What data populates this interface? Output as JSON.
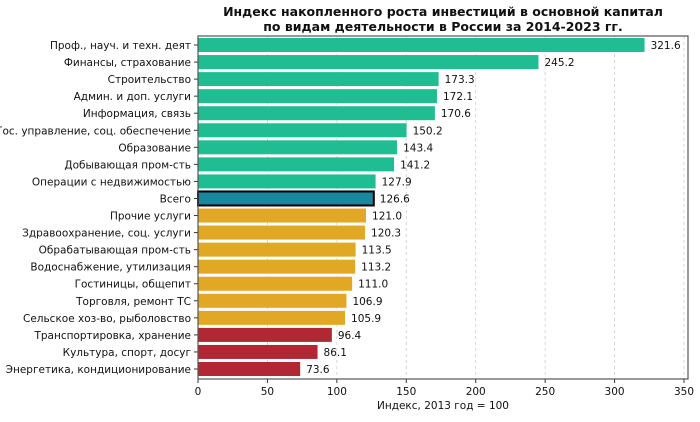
{
  "chart_data": {
    "type": "bar",
    "orientation": "horizontal",
    "title": "Индекс накопленного роста инвестиций в основной капитал\nпо видам деятельности в России за 2014-2023 гг.",
    "xlabel": "Индекс, 2013 год = 100",
    "ylabel": "",
    "xlim": [
      0,
      357
    ],
    "xticks": [
      0,
      50,
      100,
      150,
      200,
      250,
      300,
      350
    ],
    "grid": "x-dashed",
    "legend": "none",
    "colors": {
      "above": "#20bd93",
      "total": "#1b879e",
      "middle": "#e0a824",
      "below": "#b12834",
      "total_edge": "#000000"
    },
    "categories": [
      "Проф., науч. и техн. деят",
      "Финансы, страхование",
      "Строительство",
      "Админ. и доп. услуги",
      "Информация, связь",
      "Гос. управление, соц. обеспечение",
      "Образование",
      "Добывающая пром-сть",
      "Операции с недвижимостью",
      "Всего",
      "Прочие услуги",
      "Здравоохранение, соц. услуги",
      "Обрабатывающая пром-сть",
      "Водоснабжение, утилизация",
      "Гостиницы, общепит",
      "Торговля, ремонт ТС",
      "Сельское хоз-во, рыболовство",
      "Транспортировка, хранение",
      "Культура, спорт, досуг",
      "Энергетика, кондиционирование"
    ],
    "values": [
      321.6,
      245.2,
      173.3,
      172.1,
      170.6,
      150.2,
      143.4,
      141.2,
      127.9,
      126.6,
      121.0,
      120.3,
      113.5,
      113.2,
      111.0,
      106.9,
      105.9,
      96.4,
      86.1,
      73.6
    ],
    "value_labels": [
      "321.6",
      "245.2",
      "173.3",
      "172.1",
      "170.6",
      "150.2",
      "143.4",
      "141.2",
      "127.9",
      "126.6",
      "121.0",
      "120.3",
      "113.5",
      "113.2",
      "111.0",
      "106.9",
      "105.9",
      "96.4",
      "86.1",
      "73.6"
    ],
    "bar_groups": [
      "above",
      "above",
      "above",
      "above",
      "above",
      "above",
      "above",
      "above",
      "above",
      "total",
      "middle",
      "middle",
      "middle",
      "middle",
      "middle",
      "middle",
      "middle",
      "below",
      "below",
      "below"
    ]
  }
}
